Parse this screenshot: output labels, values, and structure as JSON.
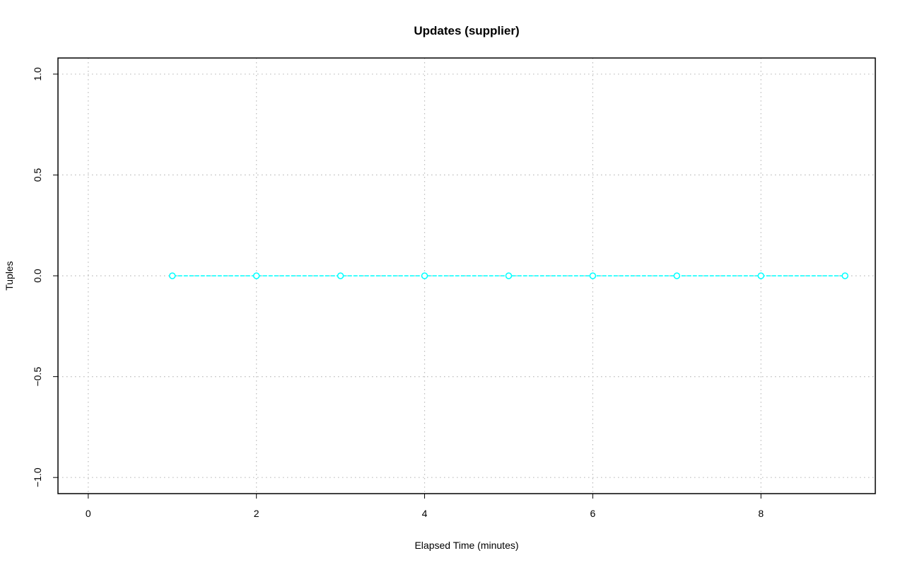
{
  "chart_data": {
    "type": "line",
    "title": "Updates (supplier)",
    "xlabel": "Elapsed Time (minutes)",
    "ylabel": "Tuples",
    "xlim": [
      -0.36,
      9.36
    ],
    "ylim": [
      -1.08,
      1.08
    ],
    "xticks": [
      0,
      2,
      4,
      6,
      8
    ],
    "yticks": [
      -1.0,
      -0.5,
      0.0,
      0.5,
      1.0
    ],
    "xtick_labels": [
      "0",
      "2",
      "4",
      "6",
      "8"
    ],
    "ytick_labels": [
      "−1.0",
      "−0.5",
      "0.0",
      "0.5",
      "1.0"
    ],
    "grid": true,
    "series": [
      {
        "color": "#00ffff",
        "line_style": "dashed",
        "marker": "open-circle",
        "x": [
          1,
          2,
          3,
          4,
          5,
          6,
          7,
          8,
          9
        ],
        "y": [
          0,
          0,
          0,
          0,
          0,
          0,
          0,
          0,
          0
        ]
      }
    ]
  }
}
